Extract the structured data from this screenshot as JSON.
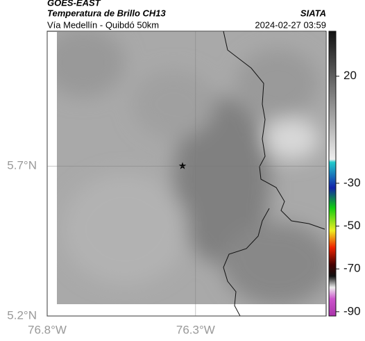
{
  "header": {
    "source": "GOES-EAST",
    "title": "Temperatura de Brillo CH13",
    "agency": "SIATA",
    "subtitle": "Vía Medellín - Quibdó 50km",
    "timestamp": "2024-02-27 03:59"
  },
  "map": {
    "xlim": [
      -76.8,
      -75.86
    ],
    "ylim": [
      5.2,
      6.15
    ],
    "xticks": [
      {
        "value": -76.8,
        "label": "76.8°W"
      },
      {
        "value": -76.3,
        "label": "76.3°W"
      }
    ],
    "yticks": [
      {
        "value": 5.7,
        "label": "5.7°N"
      },
      {
        "value": 5.2,
        "label": "5.2°N"
      }
    ]
  },
  "colorbar": {
    "lim": [
      -92,
      41
    ],
    "ticks": [
      20,
      -30,
      -50,
      -70,
      -90
    ]
  }
}
